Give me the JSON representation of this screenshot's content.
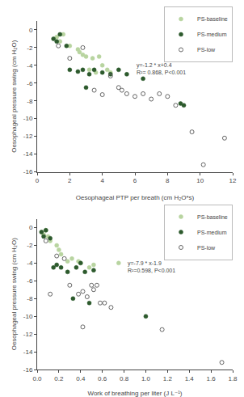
{
  "chart_data": [
    {
      "type": "scatter",
      "xlabel": "Oesophageal PTP per breath (cm H₂O*s)",
      "ylabel": "Oesophageal pressure swing (cm H₂O)",
      "xlim": [
        0,
        12
      ],
      "ylim": [
        -16,
        1
      ],
      "xticks": [
        0,
        2,
        4,
        6,
        8,
        10,
        12
      ],
      "yticks": [
        0,
        -2,
        -4,
        -6,
        -8,
        -10,
        -12,
        -14,
        -16
      ],
      "grid": false,
      "legend": "upper right",
      "annotations": [
        {
          "text": "y=-1.2 * x+0.4\nR²= 0.868, P<0.001",
          "x": 6.0,
          "y": -3.5
        }
      ],
      "series": [
        {
          "name": "PS-baseline",
          "color": "#b8d4a0",
          "marker": "circle",
          "x": [
            1.2,
            1.4,
            1.6,
            2.0,
            2.5,
            2.6,
            2.8,
            3.0,
            3.2,
            3.4,
            3.6,
            3.8,
            4.0,
            4.3,
            4.5
          ],
          "values": [
            -0.8,
            -1.3,
            -0.5,
            -1.8,
            -2.2,
            -2.5,
            -2.8,
            -3.0,
            -4.5,
            -3.2,
            -4.8,
            -3.0,
            -4.0,
            -4.5,
            -4.8
          ]
        },
        {
          "name": "PS-medium",
          "color": "#2d5a2d",
          "marker": "circle",
          "x": [
            1.0,
            1.2,
            1.4,
            1.8,
            2.0,
            2.5,
            2.8,
            3.0,
            3.2,
            3.5,
            4.0,
            4.5,
            5.0,
            5.5,
            6.5,
            8.8,
            9.0
          ],
          "values": [
            -1.0,
            -1.3,
            -0.5,
            -1.8,
            -4.5,
            -4.7,
            -4.5,
            -6.5,
            -5.0,
            -4.5,
            -4.8,
            -5.0,
            -4.5,
            -5.0,
            -5.5,
            -8.3,
            -8.5
          ]
        },
        {
          "name": "PS-low",
          "color": "#666666",
          "marker": "circle-open",
          "x": [
            1.3,
            2.0,
            2.8,
            3.5,
            4.0,
            4.5,
            5.0,
            5.2,
            5.5,
            6.0,
            6.5,
            7.0,
            7.5,
            8.0,
            8.5,
            9.5,
            10.2,
            11.5
          ],
          "values": [
            -1.8,
            -3.2,
            -2.0,
            -6.8,
            -7.3,
            -5.2,
            -6.5,
            -6.8,
            -7.2,
            -7.5,
            -7.2,
            -7.8,
            -7.2,
            -7.5,
            -8.5,
            -11.5,
            -15.2,
            -12.2
          ]
        }
      ]
    },
    {
      "type": "scatter",
      "xlabel": "Work of breathing per liter (J L⁻¹)",
      "ylabel": "Oesophageal pressure swing (cm H₂O)",
      "xlim": [
        0,
        1.8
      ],
      "ylim": [
        -16,
        1
      ],
      "xticks": [
        {
          "value": 0,
          "label": "0.0"
        },
        0.2,
        0.4,
        0.6,
        0.8,
        {
          "value": 1,
          "label": "1.0"
        },
        1.2,
        1.4,
        1.6,
        1.8
      ],
      "yticks": [
        0,
        -2,
        -4,
        -6,
        -8,
        -10,
        -12,
        -14,
        -16
      ],
      "grid": false,
      "legend": "upper right",
      "annotations": [
        {
          "text": "y=-7.9 * x-1.9\nR²=0.598, P<0.001",
          "x": 0.82,
          "y": -3.5
        }
      ],
      "series": [
        {
          "name": "PS-baseline",
          "color": "#b8d4a0",
          "marker": "circle",
          "x": [
            0.04,
            0.06,
            0.08,
            0.1,
            0.12,
            0.18,
            0.2,
            0.22,
            0.28,
            0.32,
            0.38,
            0.4,
            0.48,
            0.52,
            0.75
          ],
          "values": [
            -0.5,
            -0.8,
            -0.3,
            -1.0,
            -1.5,
            -2.0,
            -2.5,
            -3.0,
            -3.8,
            -3.5,
            -3.8,
            -4.0,
            -4.5,
            -4.2,
            -4.0
          ]
        },
        {
          "name": "PS-medium",
          "color": "#2d5a2d",
          "marker": "circle",
          "x": [
            0.04,
            0.06,
            0.08,
            0.12,
            0.15,
            0.18,
            0.22,
            0.28,
            0.33,
            0.36,
            0.4,
            0.44,
            0.48,
            0.52,
            1.0
          ],
          "values": [
            -0.5,
            -1.0,
            -0.3,
            -1.2,
            -4.5,
            -4.2,
            -4.5,
            -5.0,
            -8.0,
            -4.5,
            -4.0,
            -5.0,
            -8.5,
            -4.8,
            -10.0
          ]
        },
        {
          "name": "PS-low",
          "color": "#666666",
          "marker": "circle-open",
          "x": [
            0.08,
            0.12,
            0.18,
            0.25,
            0.3,
            0.38,
            0.42,
            0.46,
            0.5,
            0.52,
            0.55,
            0.58,
            0.62,
            0.68,
            0.42,
            1.15,
            1.7
          ],
          "values": [
            -1.5,
            -7.5,
            -3.2,
            -3.5,
            -6.5,
            -7.5,
            -7.2,
            -7.8,
            -6.5,
            -7.0,
            -6.5,
            -8.5,
            -8.5,
            -9.0,
            -11.2,
            -11.5,
            -15.2
          ]
        }
      ]
    }
  ]
}
